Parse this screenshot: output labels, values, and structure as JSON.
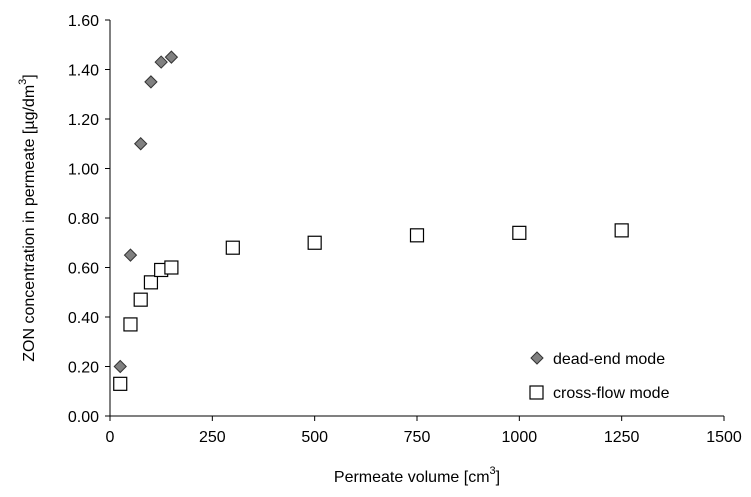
{
  "chart_data": {
    "type": "scatter",
    "title": "",
    "xlabel": "Permeate volume [cm",
    "xlabel_sup": "3",
    "xlabel_suffix": "]",
    "ylabel": "ZON concentration in permeate [µg/dm",
    "ylabel_sup": "3",
    "ylabel_suffix": "]",
    "xlim": [
      0,
      1500
    ],
    "ylim": [
      0,
      1.6
    ],
    "x_ticks": [
      "0",
      "250",
      "500",
      "750",
      "1000",
      "1250",
      "1500"
    ],
    "x_tick_values": [
      0,
      250,
      500,
      750,
      1000,
      1250,
      1500
    ],
    "y_ticks": [
      "0.00",
      "0.20",
      "0.40",
      "0.60",
      "0.80",
      "1.00",
      "1.20",
      "1.40",
      "1.60"
    ],
    "y_tick_values": [
      0,
      0.2,
      0.4,
      0.6,
      0.8,
      1.0,
      1.2,
      1.4,
      1.6
    ],
    "grid": false,
    "legend_position": "bottom-right",
    "series": [
      {
        "name": "dead-end mode",
        "marker": "diamond",
        "color": "#808080",
        "stroke": "#333333",
        "points": [
          {
            "x": 25,
            "y": 0.2
          },
          {
            "x": 50,
            "y": 0.65
          },
          {
            "x": 75,
            "y": 1.1
          },
          {
            "x": 100,
            "y": 1.35
          },
          {
            "x": 125,
            "y": 1.43
          },
          {
            "x": 150,
            "y": 1.45
          }
        ]
      },
      {
        "name": "cross-flow mode",
        "marker": "square-open",
        "color": "#ffffff",
        "stroke": "#000000",
        "points": [
          {
            "x": 25,
            "y": 0.13
          },
          {
            "x": 50,
            "y": 0.37
          },
          {
            "x": 75,
            "y": 0.47
          },
          {
            "x": 100,
            "y": 0.54
          },
          {
            "x": 125,
            "y": 0.59
          },
          {
            "x": 150,
            "y": 0.6
          },
          {
            "x": 300,
            "y": 0.68
          },
          {
            "x": 500,
            "y": 0.7
          },
          {
            "x": 750,
            "y": 0.73
          },
          {
            "x": 1000,
            "y": 0.74
          },
          {
            "x": 1250,
            "y": 0.75
          }
        ]
      }
    ]
  }
}
